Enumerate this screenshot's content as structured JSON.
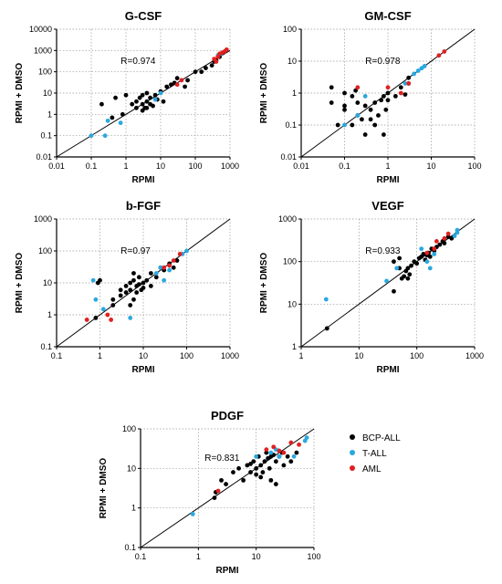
{
  "legend": {
    "items": [
      {
        "label": "BCP-ALL",
        "color": "#000000"
      },
      {
        "label": "T-ALL",
        "color": "#29a8e0"
      },
      {
        "label": "AML",
        "color": "#e02020"
      }
    ]
  },
  "chart_data": [
    {
      "type": "scatter",
      "title": "G-CSF",
      "xlabel": "RPMI",
      "ylabel": "RPMI + DMSO",
      "scale": "log",
      "xlim": [
        0.01,
        1000
      ],
      "ylim": [
        0.01,
        10000
      ],
      "xticks": [
        "0.01",
        "0.1",
        "1",
        "10",
        "100",
        "1000"
      ],
      "yticks": [
        "0.01",
        "0.1",
        "1",
        "10",
        "100",
        "1000",
        "10000"
      ],
      "annotation": "R=0.974",
      "grid": "dotted",
      "series": [
        {
          "name": "BCP-ALL",
          "points": [
            [
              0.2,
              3
            ],
            [
              0.4,
              0.7
            ],
            [
              0.5,
              6
            ],
            [
              0.8,
              1
            ],
            [
              1,
              8
            ],
            [
              1.5,
              3
            ],
            [
              2,
              4
            ],
            [
              2,
              2
            ],
            [
              2.5,
              6
            ],
            [
              3,
              3
            ],
            [
              3,
              8
            ],
            [
              3.5,
              2
            ],
            [
              4,
              4
            ],
            [
              4,
              10
            ],
            [
              5,
              3
            ],
            [
              5,
              6
            ],
            [
              6,
              2.5
            ],
            [
              7,
              8
            ],
            [
              8,
              5
            ],
            [
              10,
              12
            ],
            [
              12,
              4
            ],
            [
              15,
              20
            ],
            [
              20,
              25
            ],
            [
              25,
              30
            ],
            [
              30,
              50
            ],
            [
              50,
              20
            ],
            [
              60,
              40
            ],
            [
              100,
              100
            ],
            [
              150,
              100
            ],
            [
              200,
              150
            ],
            [
              300,
              200
            ],
            [
              350,
              300
            ],
            [
              400,
              350
            ],
            [
              500,
              500
            ],
            [
              3,
              1.5
            ],
            [
              4,
              2
            ]
          ]
        },
        {
          "name": "T-ALL",
          "points": [
            [
              0.1,
              0.1
            ],
            [
              0.25,
              0.1
            ],
            [
              0.3,
              0.5
            ],
            [
              0.7,
              0.4
            ],
            [
              7,
              5
            ],
            [
              10,
              10
            ],
            [
              450,
              600
            ],
            [
              550,
              700
            ]
          ]
        },
        {
          "name": "AML",
          "points": [
            [
              30,
              25
            ],
            [
              40,
              40
            ],
            [
              350,
              400
            ],
            [
              400,
              300
            ],
            [
              450,
              500
            ],
            [
              500,
              700
            ],
            [
              600,
              800
            ],
            [
              700,
              900
            ],
            [
              800,
              1100
            ]
          ]
        }
      ]
    },
    {
      "type": "scatter",
      "title": "GM-CSF",
      "xlabel": "RPMI",
      "ylabel": "RPMI + DMSO",
      "scale": "log",
      "xlim": [
        0.01,
        100
      ],
      "ylim": [
        0.01,
        100
      ],
      "xticks": [
        "0.01",
        "0.1",
        "1",
        "10",
        "100"
      ],
      "yticks": [
        "0.01",
        "0.1",
        "1",
        "10",
        "100"
      ],
      "annotation": "R=0.978",
      "grid": "dotted",
      "series": [
        {
          "name": "BCP-ALL",
          "points": [
            [
              0.05,
              1.5
            ],
            [
              0.05,
              0.5
            ],
            [
              0.07,
              0.1
            ],
            [
              0.1,
              1
            ],
            [
              0.1,
              0.4
            ],
            [
              0.1,
              0.3
            ],
            [
              0.15,
              0.1
            ],
            [
              0.15,
              0.8
            ],
            [
              0.18,
              1.2
            ],
            [
              0.2,
              0.2
            ],
            [
              0.2,
              0.5
            ],
            [
              0.25,
              0.15
            ],
            [
              0.3,
              0.05
            ],
            [
              0.3,
              0.4
            ],
            [
              0.4,
              0.3
            ],
            [
              0.5,
              0.5
            ],
            [
              0.5,
              0.1
            ],
            [
              0.6,
              0.2
            ],
            [
              0.7,
              0.6
            ],
            [
              0.8,
              0.05
            ],
            [
              0.8,
              0.8
            ],
            [
              0.9,
              0.3
            ],
            [
              1,
              1
            ],
            [
              1,
              0.6
            ],
            [
              1.5,
              0.8
            ],
            [
              2,
              1.5
            ],
            [
              3,
              2
            ],
            [
              3,
              3
            ],
            [
              2.5,
              0.9
            ],
            [
              0.4,
              0.15
            ]
          ]
        },
        {
          "name": "T-ALL",
          "points": [
            [
              0.1,
              0.1
            ],
            [
              0.2,
              0.2
            ],
            [
              0.3,
              0.8
            ],
            [
              2.5,
              2
            ],
            [
              4,
              4
            ],
            [
              5,
              5
            ],
            [
              6,
              6
            ],
            [
              7,
              7
            ]
          ]
        },
        {
          "name": "AML",
          "points": [
            [
              0.2,
              1.5
            ],
            [
              1,
              1.5
            ],
            [
              2,
              1
            ],
            [
              3,
              2
            ],
            [
              15,
              15
            ],
            [
              20,
              20
            ]
          ]
        }
      ]
    },
    {
      "type": "scatter",
      "title": "b-FGF",
      "xlabel": "RPMI",
      "ylabel": "RPMI + DMSO",
      "scale": "log",
      "xlim": [
        0.1,
        1000
      ],
      "ylim": [
        0.1,
        1000
      ],
      "xticks": [
        "0.1",
        "1",
        "10",
        "100",
        "1000"
      ],
      "yticks": [
        "0.1",
        "1",
        "10",
        "100",
        "1000"
      ],
      "annotation": "R=0.97",
      "grid": "dotted",
      "series": [
        {
          "name": "BCP-ALL",
          "points": [
            [
              0.8,
              0.8
            ],
            [
              0.9,
              10
            ],
            [
              1,
              12
            ],
            [
              2,
              2
            ],
            [
              2,
              3
            ],
            [
              3,
              4
            ],
            [
              4,
              5
            ],
            [
              4,
              8
            ],
            [
              5,
              6
            ],
            [
              5,
              10
            ],
            [
              6,
              12
            ],
            [
              6,
              20
            ],
            [
              7,
              5
            ],
            [
              7,
              8
            ],
            [
              8,
              9
            ],
            [
              8,
              15
            ],
            [
              9,
              6
            ],
            [
              10,
              10
            ],
            [
              10,
              7
            ],
            [
              12,
              12
            ],
            [
              15,
              8
            ],
            [
              15,
              20
            ],
            [
              20,
              15
            ],
            [
              25,
              30
            ],
            [
              30,
              25
            ],
            [
              40,
              40
            ],
            [
              50,
              30
            ],
            [
              60,
              50
            ],
            [
              3,
              6
            ],
            [
              6,
              3
            ],
            [
              5,
              2
            ]
          ]
        },
        {
          "name": "T-ALL",
          "points": [
            [
              0.7,
              12
            ],
            [
              0.8,
              3
            ],
            [
              1.2,
              1.5
            ],
            [
              5,
              0.8
            ],
            [
              20,
              20
            ],
            [
              25,
              30
            ],
            [
              30,
              12
            ],
            [
              40,
              25
            ],
            [
              80,
              80
            ],
            [
              100,
              100
            ]
          ]
        },
        {
          "name": "AML",
          "points": [
            [
              0.5,
              0.7
            ],
            [
              1.5,
              1
            ],
            [
              1.8,
              0.7
            ],
            [
              30,
              30
            ],
            [
              40,
              35
            ],
            [
              50,
              50
            ],
            [
              70,
              80
            ]
          ]
        }
      ]
    },
    {
      "type": "scatter",
      "title": "VEGF",
      "xlabel": "RPMI",
      "ylabel": "RPMI + DMSO",
      "scale": "log",
      "xlim": [
        1,
        1000
      ],
      "ylim": [
        1,
        1000
      ],
      "xticks": [
        "1",
        "10",
        "100",
        "1000"
      ],
      "yticks": [
        "1",
        "10",
        "100",
        "1000"
      ],
      "annotation": "R=0.933",
      "grid": "dotted",
      "series": [
        {
          "name": "BCP-ALL",
          "points": [
            [
              2.8,
              2.7
            ],
            [
              40,
              20
            ],
            [
              40,
              100
            ],
            [
              50,
              120
            ],
            [
              55,
              40
            ],
            [
              60,
              45
            ],
            [
              65,
              60
            ],
            [
              70,
              70
            ],
            [
              75,
              50
            ],
            [
              80,
              80
            ],
            [
              90,
              100
            ],
            [
              100,
              90
            ],
            [
              110,
              120
            ],
            [
              120,
              130
            ],
            [
              130,
              150
            ],
            [
              140,
              110
            ],
            [
              150,
              140
            ],
            [
              160,
              160
            ],
            [
              170,
              130
            ],
            [
              180,
              200
            ],
            [
              200,
              180
            ],
            [
              220,
              220
            ],
            [
              250,
              250
            ],
            [
              280,
              300
            ],
            [
              300,
              270
            ],
            [
              350,
              380
            ],
            [
              400,
              350
            ],
            [
              50,
              70
            ],
            [
              70,
              40
            ]
          ]
        },
        {
          "name": "T-ALL",
          "points": [
            [
              2.7,
              13
            ],
            [
              30,
              35
            ],
            [
              45,
              70
            ],
            [
              120,
              200
            ],
            [
              150,
              100
            ],
            [
              170,
              70
            ],
            [
              200,
              150
            ],
            [
              450,
              400
            ],
            [
              500,
              480
            ],
            [
              500,
              550
            ]
          ]
        },
        {
          "name": "AML",
          "points": [
            [
              150,
              160
            ],
            [
              200,
              200
            ],
            [
              220,
              300
            ],
            [
              300,
              350
            ],
            [
              350,
              450
            ]
          ]
        }
      ]
    },
    {
      "type": "scatter",
      "title": "PDGF",
      "xlabel": "RPMI",
      "ylabel": "RPMI + DMSO",
      "scale": "log",
      "xlim": [
        0.1,
        100
      ],
      "ylim": [
        0.1,
        100
      ],
      "xticks": [
        "0.1",
        "1",
        "10",
        "100"
      ],
      "yticks": [
        "0.1",
        "1",
        "10",
        "100"
      ],
      "annotation": "R=0.831",
      "grid": "dotted",
      "series": [
        {
          "name": "BCP-ALL",
          "points": [
            [
              1.9,
              1.8
            ],
            [
              2,
              2.5
            ],
            [
              2.5,
              5
            ],
            [
              3,
              4
            ],
            [
              4,
              8
            ],
            [
              5,
              10
            ],
            [
              6,
              5
            ],
            [
              7,
              12
            ],
            [
              8,
              8
            ],
            [
              9,
              15
            ],
            [
              10,
              10
            ],
            [
              11,
              20
            ],
            [
              12,
              6
            ],
            [
              12,
              12
            ],
            [
              13,
              8
            ],
            [
              14,
              15
            ],
            [
              15,
              25
            ],
            [
              16,
              18
            ],
            [
              17,
              10
            ],
            [
              18,
              20
            ],
            [
              18,
              5
            ],
            [
              20,
              22
            ],
            [
              22,
              15
            ],
            [
              22,
              4
            ],
            [
              25,
              20
            ],
            [
              28,
              25
            ],
            [
              30,
              12
            ],
            [
              35,
              20
            ],
            [
              40,
              15
            ],
            [
              50,
              25
            ],
            [
              10,
              7
            ],
            [
              8,
              13
            ]
          ]
        },
        {
          "name": "T-ALL",
          "points": [
            [
              0.8,
              0.7
            ],
            [
              10,
              20
            ],
            [
              18,
              25
            ],
            [
              22,
              30
            ],
            [
              25,
              20
            ],
            [
              45,
              20
            ],
            [
              70,
              50
            ],
            [
              75,
              60
            ]
          ]
        },
        {
          "name": "AML",
          "points": [
            [
              2.2,
              2.7
            ],
            [
              15,
              30
            ],
            [
              20,
              35
            ],
            [
              25,
              28
            ],
            [
              30,
              25
            ],
            [
              40,
              45
            ],
            [
              55,
              40
            ]
          ]
        }
      ]
    }
  ]
}
